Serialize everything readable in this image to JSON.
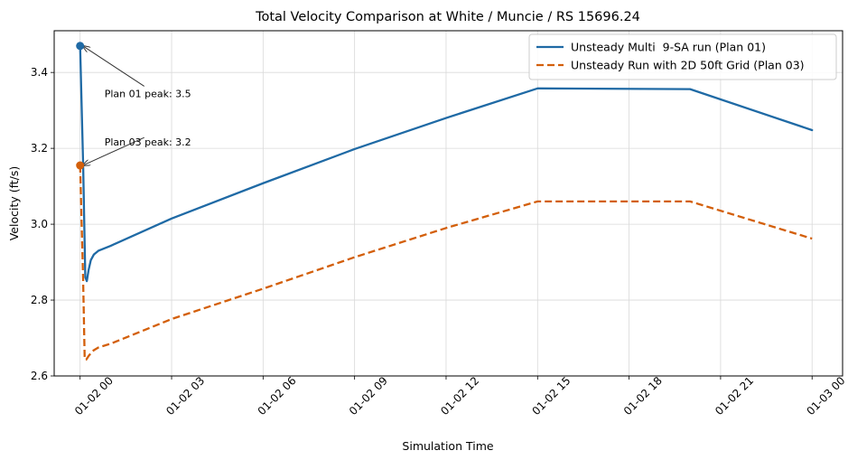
{
  "chart_data": {
    "type": "line",
    "title": "Total Velocity Comparison at White / Muncie / RS 15696.24",
    "xlabel": "Simulation Time",
    "ylabel": "Velocity (ft/s)",
    "x_unit": "hours",
    "xlim": [
      -0.85,
      25.0
    ],
    "ylim": [
      2.6,
      3.51
    ],
    "xticks": [
      {
        "value": 0,
        "label": "01-02 00"
      },
      {
        "value": 3,
        "label": "01-02 03"
      },
      {
        "value": 6,
        "label": "01-02 06"
      },
      {
        "value": 9,
        "label": "01-02 09"
      },
      {
        "value": 12,
        "label": "01-02 12"
      },
      {
        "value": 15,
        "label": "01-02 15"
      },
      {
        "value": 18,
        "label": "01-02 18"
      },
      {
        "value": 21,
        "label": "01-02 21"
      },
      {
        "value": 24,
        "label": "01-03 00"
      }
    ],
    "yticks": [
      {
        "value": 2.6,
        "label": "2.6"
      },
      {
        "value": 2.8,
        "label": "2.8"
      },
      {
        "value": 3.0,
        "label": "3.0"
      },
      {
        "value": 3.2,
        "label": "3.2"
      },
      {
        "value": 3.4,
        "label": "3.4"
      }
    ],
    "grid": true,
    "legend_position": "top-right",
    "series": [
      {
        "name": "Unsteady Multi  9-SA run (Plan 01)",
        "color": "#1f6aa5",
        "dash": "solid",
        "x": [
          0,
          0.1,
          0.17,
          0.22,
          0.28,
          0.35,
          0.45,
          0.6,
          1,
          3,
          6,
          9,
          12,
          15,
          20,
          24
        ],
        "y": [
          3.47,
          3.155,
          2.86,
          2.85,
          2.88,
          2.905,
          2.92,
          2.93,
          2.943,
          3.015,
          3.108,
          3.198,
          3.28,
          3.358,
          3.356,
          3.248
        ]
      },
      {
        "name": "Unsteady Run with 2D 50ft Grid (Plan 03)",
        "color": "#d35f0a",
        "dash": "dashed",
        "x": [
          0,
          0.1,
          0.15,
          0.2,
          0.3,
          0.45,
          0.6,
          1,
          3,
          6,
          9,
          12,
          15,
          20,
          24
        ],
        "y": [
          3.155,
          2.85,
          2.645,
          2.643,
          2.655,
          2.668,
          2.675,
          2.685,
          2.75,
          2.83,
          2.913,
          2.99,
          3.06,
          3.06,
          2.962
        ]
      }
    ],
    "annotations": [
      {
        "text": "Plan 01 peak: 3.5",
        "x": 0,
        "y": 3.47,
        "series": 0,
        "text_x": 0.8,
        "text_y": 3.335
      },
      {
        "text": "Plan 03 peak: 3.2",
        "x": 0,
        "y": 3.155,
        "series": 1,
        "text_x": 0.8,
        "text_y": 3.207
      }
    ]
  }
}
